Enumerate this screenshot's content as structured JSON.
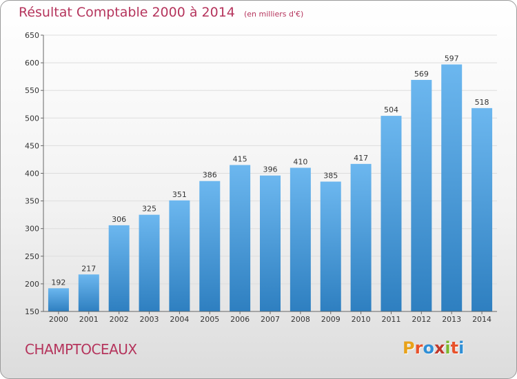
{
  "header": {
    "title": "Résultat Comptable 2000 à 2014",
    "subtitle": "(en milliers d'€)"
  },
  "footer": {
    "commune": "CHAMPTOCEAUX",
    "logo_text": "Proxiti",
    "logo_colors": [
      "#e8a21a",
      "#e8522b",
      "#2f8fd6",
      "#c0392b",
      "#7cb82f",
      "#e8522b",
      "#2f8fd6"
    ]
  },
  "colors": {
    "title": "#b5345c",
    "bar_top": "#6cb7ef",
    "bar_bottom": "#2e7fc0",
    "grid": "#dddddd",
    "axis": "#666666"
  },
  "chart_data": {
    "type": "bar",
    "title": "Résultat Comptable 2000 à 2014",
    "subtitle": "(en milliers d'€)",
    "categories": [
      "2000",
      "2001",
      "2002",
      "2003",
      "2004",
      "2005",
      "2006",
      "2007",
      "2008",
      "2009",
      "2010",
      "2011",
      "2012",
      "2013",
      "2014"
    ],
    "values": [
      192,
      217,
      306,
      325,
      351,
      386,
      415,
      396,
      410,
      385,
      417,
      504,
      569,
      597,
      518
    ],
    "ylim": [
      150,
      650
    ],
    "yticks": [
      150,
      200,
      250,
      300,
      350,
      400,
      450,
      500,
      550,
      600,
      650
    ],
    "xlabel": "",
    "ylabel": "",
    "grid": true,
    "legend": "none"
  }
}
